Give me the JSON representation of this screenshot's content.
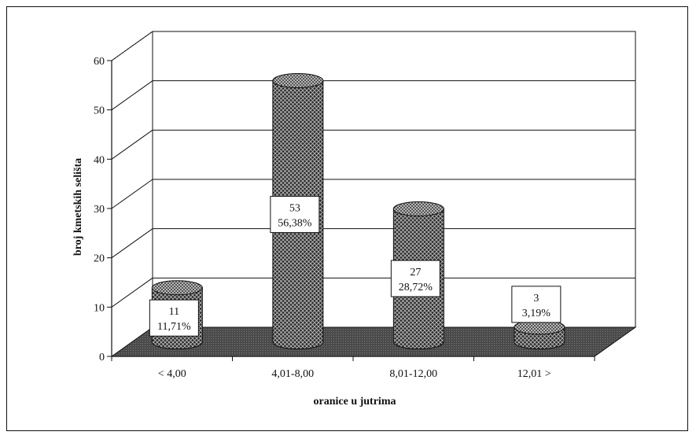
{
  "chart_data": {
    "type": "bar",
    "style": "3d-cylinder",
    "categories": [
      "< 4,00",
      "4,01-8,00",
      "8,01-12,00",
      "12,01 >"
    ],
    "values": [
      11,
      53,
      27,
      3
    ],
    "labels": [
      {
        "count": "11",
        "percent": "11,71%"
      },
      {
        "count": "53",
        "percent": "56,38%"
      },
      {
        "count": "27",
        "percent": "28,72%"
      },
      {
        "count": "3",
        "percent": "3,19%"
      }
    ],
    "xlabel": "oranice u jutrima",
    "ylabel": "broj kmetskih selišta",
    "ylim": [
      0,
      60
    ],
    "yticks": [
      "0",
      "10",
      "20",
      "30",
      "40",
      "50",
      "60"
    ],
    "grid": true,
    "colors": {
      "bar": "#2a2a2a",
      "floor": "#555555",
      "grid": "#000000"
    }
  }
}
